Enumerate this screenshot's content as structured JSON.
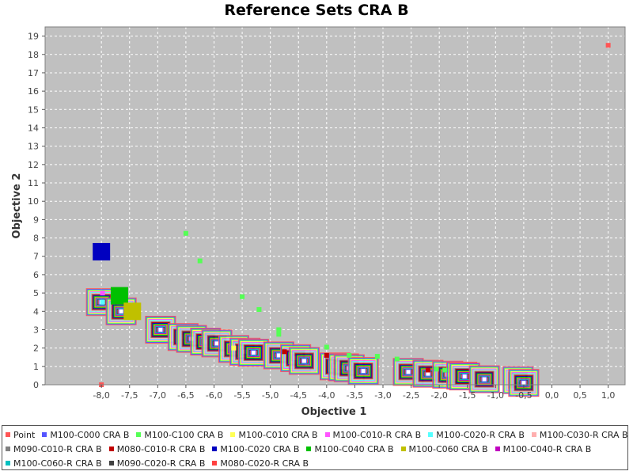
{
  "chart_data": {
    "type": "scatter",
    "title": "Reference Sets CRA B",
    "xlabel": "Objective 1",
    "ylabel": "Objective 2",
    "xlim": [
      -9.0,
      1.3
    ],
    "ylim": [
      0,
      19.5
    ],
    "x_ticks": [
      -8.0,
      -7.5,
      -7.0,
      -6.5,
      -6.0,
      -5.5,
      -5.0,
      -4.5,
      -4.0,
      -3.5,
      -3.0,
      -2.5,
      -2.0,
      -1.5,
      -1.0,
      -0.5,
      0.0,
      0.5,
      1.0
    ],
    "x_tick_labels": [
      "-8,0",
      "-7,5",
      "-7,0",
      "-6,5",
      "-6,0",
      "-5,5",
      "-5,0",
      "-4,5",
      "-4,0",
      "-3,5",
      "-3,0",
      "-2,5",
      "-2,0",
      "-1,5",
      "-1,0",
      "-0,5",
      "0,0",
      "0,5",
      "1,0"
    ],
    "y_ticks": [
      0,
      1,
      2,
      3,
      4,
      5,
      6,
      7,
      8,
      9,
      10,
      11,
      12,
      13,
      14,
      15,
      16,
      17,
      18,
      19
    ],
    "grid": true,
    "legend_position": "bottom",
    "background": "#c0c0c0",
    "series": [
      {
        "name": "Point",
        "color": "#ff5555",
        "points": [
          [
            1.0,
            18.5
          ],
          [
            -8.0,
            0.0
          ]
        ]
      },
      {
        "name": "M100-C000 CRA B",
        "color": "#5555ff",
        "points": []
      },
      {
        "name": "M100-C100 CRA B",
        "color": "#55ff55",
        "points": [
          [
            -6.5,
            8.25
          ],
          [
            -6.25,
            6.75
          ],
          [
            -5.5,
            4.8
          ],
          [
            -5.2,
            4.1
          ],
          [
            -4.85,
            3.0
          ],
          [
            -4.85,
            2.75
          ],
          [
            -4.0,
            2.05
          ],
          [
            -3.6,
            1.6
          ],
          [
            -3.1,
            1.55
          ],
          [
            -2.75,
            1.4
          ],
          [
            -2.05,
            0.85
          ],
          [
            -1.9,
            0.8
          ]
        ]
      },
      {
        "name": "M100-C010 CRA B",
        "color": "#ffff55",
        "points": [
          [
            -8.0,
            7.25
          ],
          [
            -5.65,
            2.0
          ]
        ]
      },
      {
        "name": "M100-C010-R CRA B",
        "color": "#ff55ff",
        "points": [
          [
            -7.98,
            5.0
          ]
        ]
      },
      {
        "name": "M100-C020-R CRA B",
        "color": "#55ffff",
        "points": [
          [
            -7.98,
            4.5
          ]
        ]
      },
      {
        "name": "M100-C030-R CRA B",
        "color": "#ffafaf",
        "points": []
      },
      {
        "name": "M090-C010-R CRA B",
        "color": "#808080",
        "points": []
      },
      {
        "name": "M080-C010-R CRA B",
        "color": "#c00000",
        "points": [
          [
            -4.75,
            1.8
          ],
          [
            -4.0,
            1.6
          ],
          [
            -2.2,
            0.8
          ]
        ]
      },
      {
        "name": "M100-C020 CRA B",
        "color": "#0000c0",
        "points": [
          [
            -8.0,
            7.25
          ]
        ]
      },
      {
        "name": "M100-C040 CRA B",
        "color": "#00c000",
        "points": [
          [
            -7.68,
            4.85
          ]
        ]
      },
      {
        "name": "M100-C060 CRA B",
        "color": "#c0c000",
        "points": [
          [
            -7.45,
            4.0
          ]
        ]
      },
      {
        "name": "M100-C040-R CRA B",
        "color": "#c000c0",
        "points": []
      },
      {
        "name": "M100-C060-R CRA B",
        "color": "#00c0c0",
        "points": []
      },
      {
        "name": "M090-C020-R CRA B",
        "color": "#404040",
        "points": []
      },
      {
        "name": "M080-C020-R CRA B",
        "color": "#ff4040",
        "points": []
      }
    ],
    "reference_boxes": [
      [
        -8.0,
        4.5
      ],
      [
        -7.65,
        4.0
      ],
      [
        -6.95,
        3.0
      ],
      [
        -6.55,
        2.6
      ],
      [
        -6.4,
        2.5
      ],
      [
        -6.15,
        2.35
      ],
      [
        -5.95,
        2.25
      ],
      [
        -5.65,
        1.95
      ],
      [
        -5.45,
        1.8
      ],
      [
        -5.3,
        1.75
      ],
      [
        -4.85,
        1.6
      ],
      [
        -4.55,
        1.45
      ],
      [
        -4.4,
        1.3
      ],
      [
        -3.85,
        1.0
      ],
      [
        -3.7,
        0.95
      ],
      [
        -3.6,
        0.9
      ],
      [
        -3.35,
        0.75
      ],
      [
        -2.55,
        0.7
      ],
      [
        -2.2,
        0.6
      ],
      [
        -1.85,
        0.55
      ],
      [
        -1.6,
        0.5
      ],
      [
        -1.55,
        0.45
      ],
      [
        -1.2,
        0.3
      ],
      [
        -0.6,
        0.25
      ],
      [
        -0.5,
        0.1
      ]
    ]
  }
}
